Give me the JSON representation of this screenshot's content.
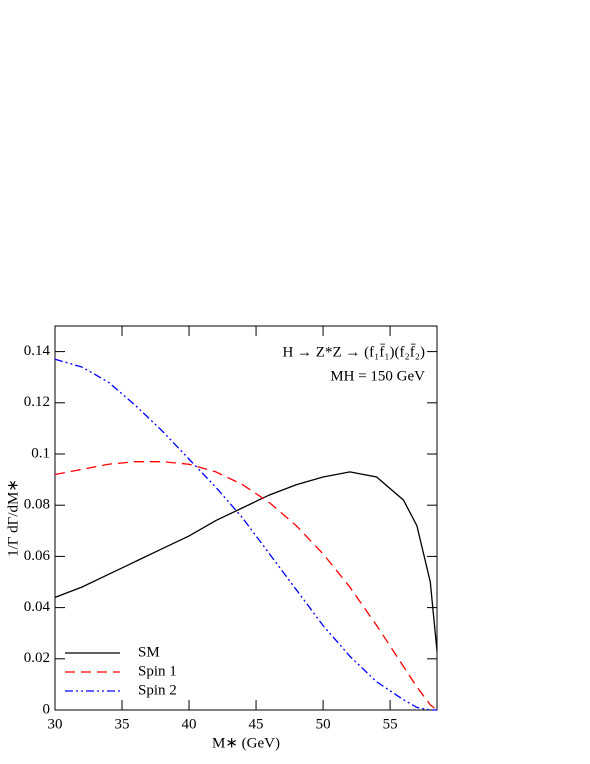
{
  "chart_data": {
    "type": "line",
    "annotations": [
      "H → Z*Z → (f₁f̄₁)(f₂f̄₂)",
      "MH = 150 GeV"
    ],
    "xlabel": "M∗ (GeV)",
    "ylabel": "1/Γ dΓ/dM∗",
    "x": [
      30,
      32,
      34,
      36,
      38,
      40,
      42,
      44,
      46,
      48,
      50,
      52,
      54,
      56,
      57,
      58,
      58.5
    ],
    "series": [
      {
        "name": "SM",
        "color": "#000000",
        "style": "solid",
        "values": [
          0.044,
          0.048,
          0.053,
          0.058,
          0.063,
          0.068,
          0.074,
          0.079,
          0.084,
          0.088,
          0.091,
          0.093,
          0.091,
          0.082,
          0.072,
          0.05,
          0.023
        ]
      },
      {
        "name": "Spin 1",
        "color": "#ff0000",
        "style": "dashed",
        "values": [
          0.092,
          0.094,
          0.096,
          0.097,
          0.097,
          0.096,
          0.093,
          0.088,
          0.081,
          0.072,
          0.061,
          0.048,
          0.033,
          0.017,
          0.009,
          0.002,
          0
        ]
      },
      {
        "name": "Spin 2",
        "color": "#0000ff",
        "style": "dashdotdot",
        "values": [
          0.137,
          0.134,
          0.128,
          0.119,
          0.109,
          0.098,
          0.087,
          0.075,
          0.061,
          0.047,
          0.033,
          0.021,
          0.011,
          0.004,
          0.001,
          0,
          0
        ]
      }
    ],
    "xlim": [
      30,
      58.5
    ],
    "xticks": [
      30,
      35,
      40,
      45,
      50,
      55
    ],
    "ylim": [
      0,
      0.15
    ],
    "yticks": [
      0,
      0.02,
      0.04,
      0.06,
      0.08,
      0.1,
      0.12,
      0.14
    ],
    "legend": "lower left"
  }
}
